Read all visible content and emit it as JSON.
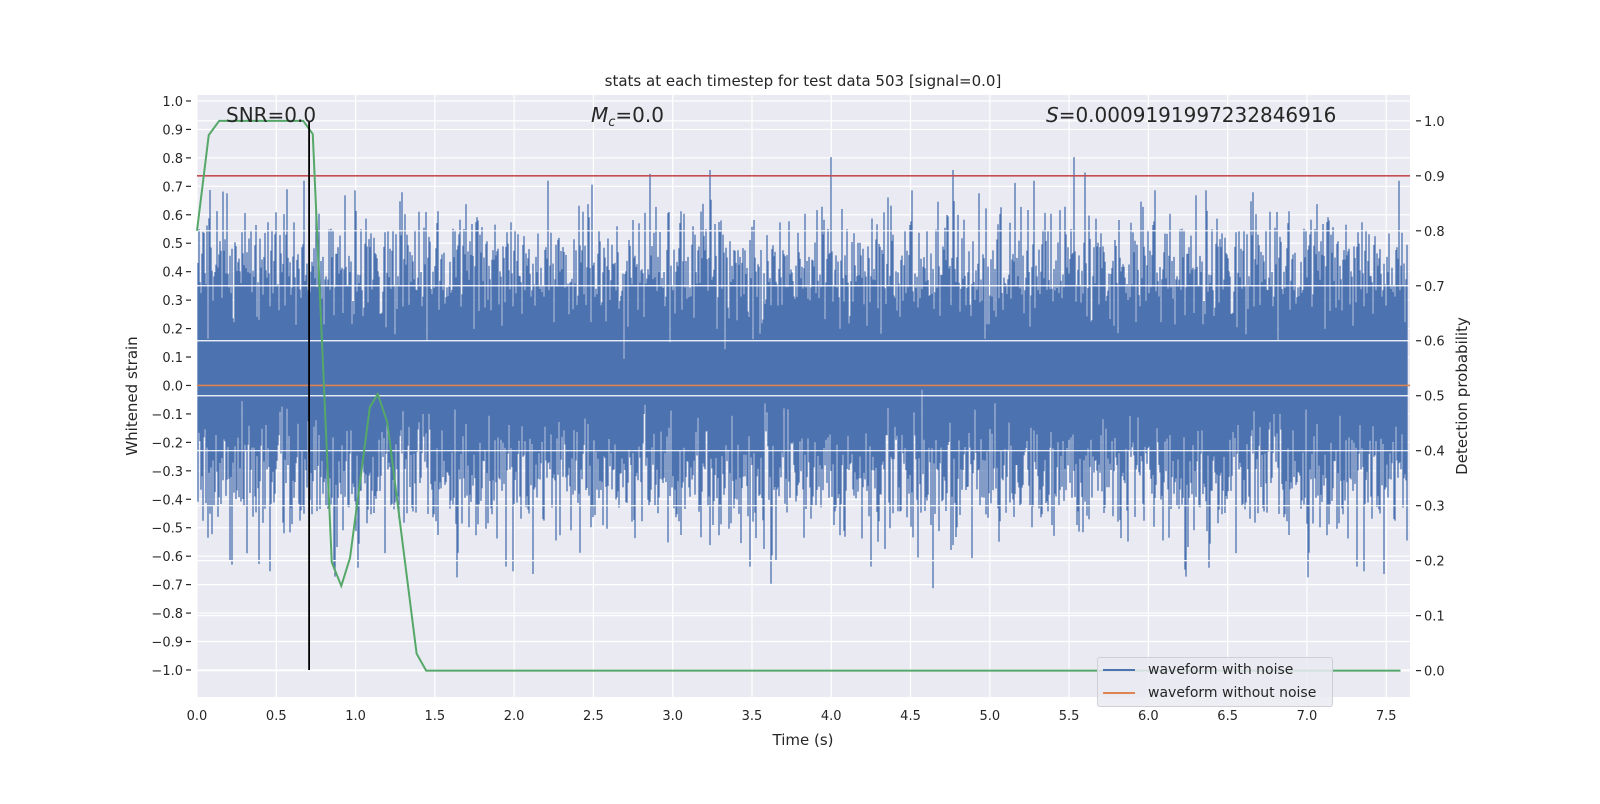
{
  "chart_data": {
    "type": "line",
    "title": "stats at each timestep for test data 503 [signal=0.0]",
    "xlabel": "Time (s)",
    "ylabel": "Whitened strain",
    "y2label": "Detection probability",
    "xlim": [
      0,
      7.65
    ],
    "ylim": [
      -1.095,
      1.021
    ],
    "y2lim": [
      -0.048,
      1.047
    ],
    "grid": true,
    "xticks": [
      "0.0",
      "0.5",
      "1.0",
      "1.5",
      "2.0",
      "2.5",
      "3.0",
      "3.5",
      "4.0",
      "4.5",
      "5.0",
      "5.5",
      "6.0",
      "6.5",
      "7.0",
      "7.5"
    ],
    "yticks": [
      "1.0",
      "0.9",
      "0.8",
      "0.7",
      "0.6",
      "0.5",
      "0.4",
      "0.3",
      "0.2",
      "0.1",
      "0.0",
      "−0.1",
      "−0.2",
      "−0.3",
      "−0.4",
      "−0.5",
      "−0.6",
      "−0.7",
      "−0.8",
      "−0.9",
      "−1.0"
    ],
    "y2ticks": [
      "1.0",
      "0.9",
      "0.8",
      "0.7",
      "0.6",
      "0.5",
      "0.4",
      "0.3",
      "0.2",
      "0.1",
      "0.0"
    ],
    "annotations": {
      "snr": "SNR=0.0",
      "mc_symbol": "M",
      "mc_sub": "c",
      "mc_value": "=0.0",
      "s_symbol": "S",
      "s_value": "=0.0009191997232846916"
    },
    "legend": {
      "placement": "lower-right",
      "entries": [
        {
          "label": "waveform with noise",
          "color": "#4c72b0"
        },
        {
          "label": "waveform without noise",
          "color": "#dd8452"
        }
      ]
    },
    "series": [
      {
        "name": "waveform with noise",
        "axis": "left",
        "color": "#4c72b0",
        "kind": "noise",
        "mean": 0.05,
        "sigma": 0.22
      },
      {
        "name": "waveform without noise",
        "axis": "left",
        "color": "#dd8452",
        "x": [
          0,
          7.65
        ],
        "y": [
          0,
          0
        ]
      },
      {
        "name": "detection probability",
        "axis": "right",
        "color": "#55a868",
        "x": [
          0,
          0.074,
          0.14,
          0.67,
          0.73,
          0.85,
          0.91,
          0.965,
          1.09,
          1.14,
          1.2,
          1.385,
          1.445,
          7.59
        ],
        "y": [
          0.8,
          0.974,
          1.0,
          1.0,
          0.976,
          0.197,
          0.154,
          0.205,
          0.479,
          0.503,
          0.452,
          0.031,
          0.0,
          0.0
        ]
      },
      {
        "name": "threshold",
        "axis": "right",
        "color": "#c44e52",
        "y": 0.9
      },
      {
        "name": "detection time",
        "axis": "marker",
        "color": "#000000",
        "x": 0.707
      }
    ]
  }
}
